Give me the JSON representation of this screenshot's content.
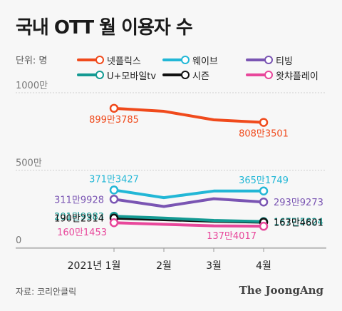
{
  "header": {
    "title": "국내 OTT 월 이용자 수",
    "unit": "단위: 명"
  },
  "footer": {
    "source": "자료: 코리안클릭",
    "brand": "The JoongAng"
  },
  "colors": {
    "netflix": "#f04a1c",
    "wavve": "#22b7d6",
    "tving": "#7a55b3",
    "uplus": "#149a93",
    "seezn": "#111111",
    "watcha": "#e8479b",
    "axis": "#999999"
  },
  "chart_data": {
    "type": "line",
    "title": "국내 OTT 월 이용자 수",
    "unit": "단위: 명",
    "categories": [
      "2021년 1월",
      "2월",
      "3월",
      "4월"
    ],
    "ylim": [
      0,
      10000000
    ],
    "yticks": [
      {
        "value": 0,
        "label": "0"
      },
      {
        "value": 5000000,
        "label": "500만"
      },
      {
        "value": 10000000,
        "label": "1000만"
      }
    ],
    "grid": true,
    "legend": "top",
    "series": [
      {
        "name": "넷플릭스",
        "key": "netflix",
        "values": [
          8993785,
          8800000,
          8250000,
          8083501
        ],
        "labels": [
          {
            "i": 0,
            "text": "899만3785",
            "pos": "below"
          },
          {
            "i": 3,
            "text": "808만3501",
            "pos": "below"
          }
        ]
      },
      {
        "name": "웨이브",
        "key": "wavve",
        "values": [
          3713427,
          3220000,
          3650000,
          3651749
        ],
        "labels": [
          {
            "i": 0,
            "text": "371만3427",
            "pos": "above"
          },
          {
            "i": 3,
            "text": "365만1749",
            "pos": "above"
          }
        ]
      },
      {
        "name": "티빙",
        "key": "tving",
        "values": [
          3119928,
          2650000,
          3150000,
          2939273
        ],
        "labels": [
          {
            "i": 0,
            "text": "311만9928",
            "pos": "left"
          },
          {
            "i": 3,
            "text": "293만9273",
            "pos": "right"
          }
        ]
      },
      {
        "name": "U+모바일tv",
        "key": "uplus",
        "values": [
          2019983,
          1900000,
          1750000,
          1675824
        ],
        "labels": [
          {
            "i": 0,
            "text": "201만9983",
            "pos": "left"
          },
          {
            "i": 3,
            "text": "167만5824",
            "pos": "right"
          }
        ]
      },
      {
        "name": "시즌",
        "key": "seezn",
        "values": [
          1902314,
          1800000,
          1700000,
          1634601
        ],
        "labels": [
          {
            "i": 0,
            "text": "190만2314",
            "pos": "left"
          },
          {
            "i": 3,
            "text": "163만4601",
            "pos": "right"
          }
        ]
      },
      {
        "name": "왓챠플레이",
        "key": "watcha",
        "values": [
          1601453,
          1500000,
          1400000,
          1374017
        ],
        "labels": [
          {
            "i": 0,
            "text": "160만1453",
            "pos": "left-below"
          },
          {
            "i": 3,
            "text": "137만4017",
            "pos": "left-below"
          }
        ]
      }
    ]
  }
}
